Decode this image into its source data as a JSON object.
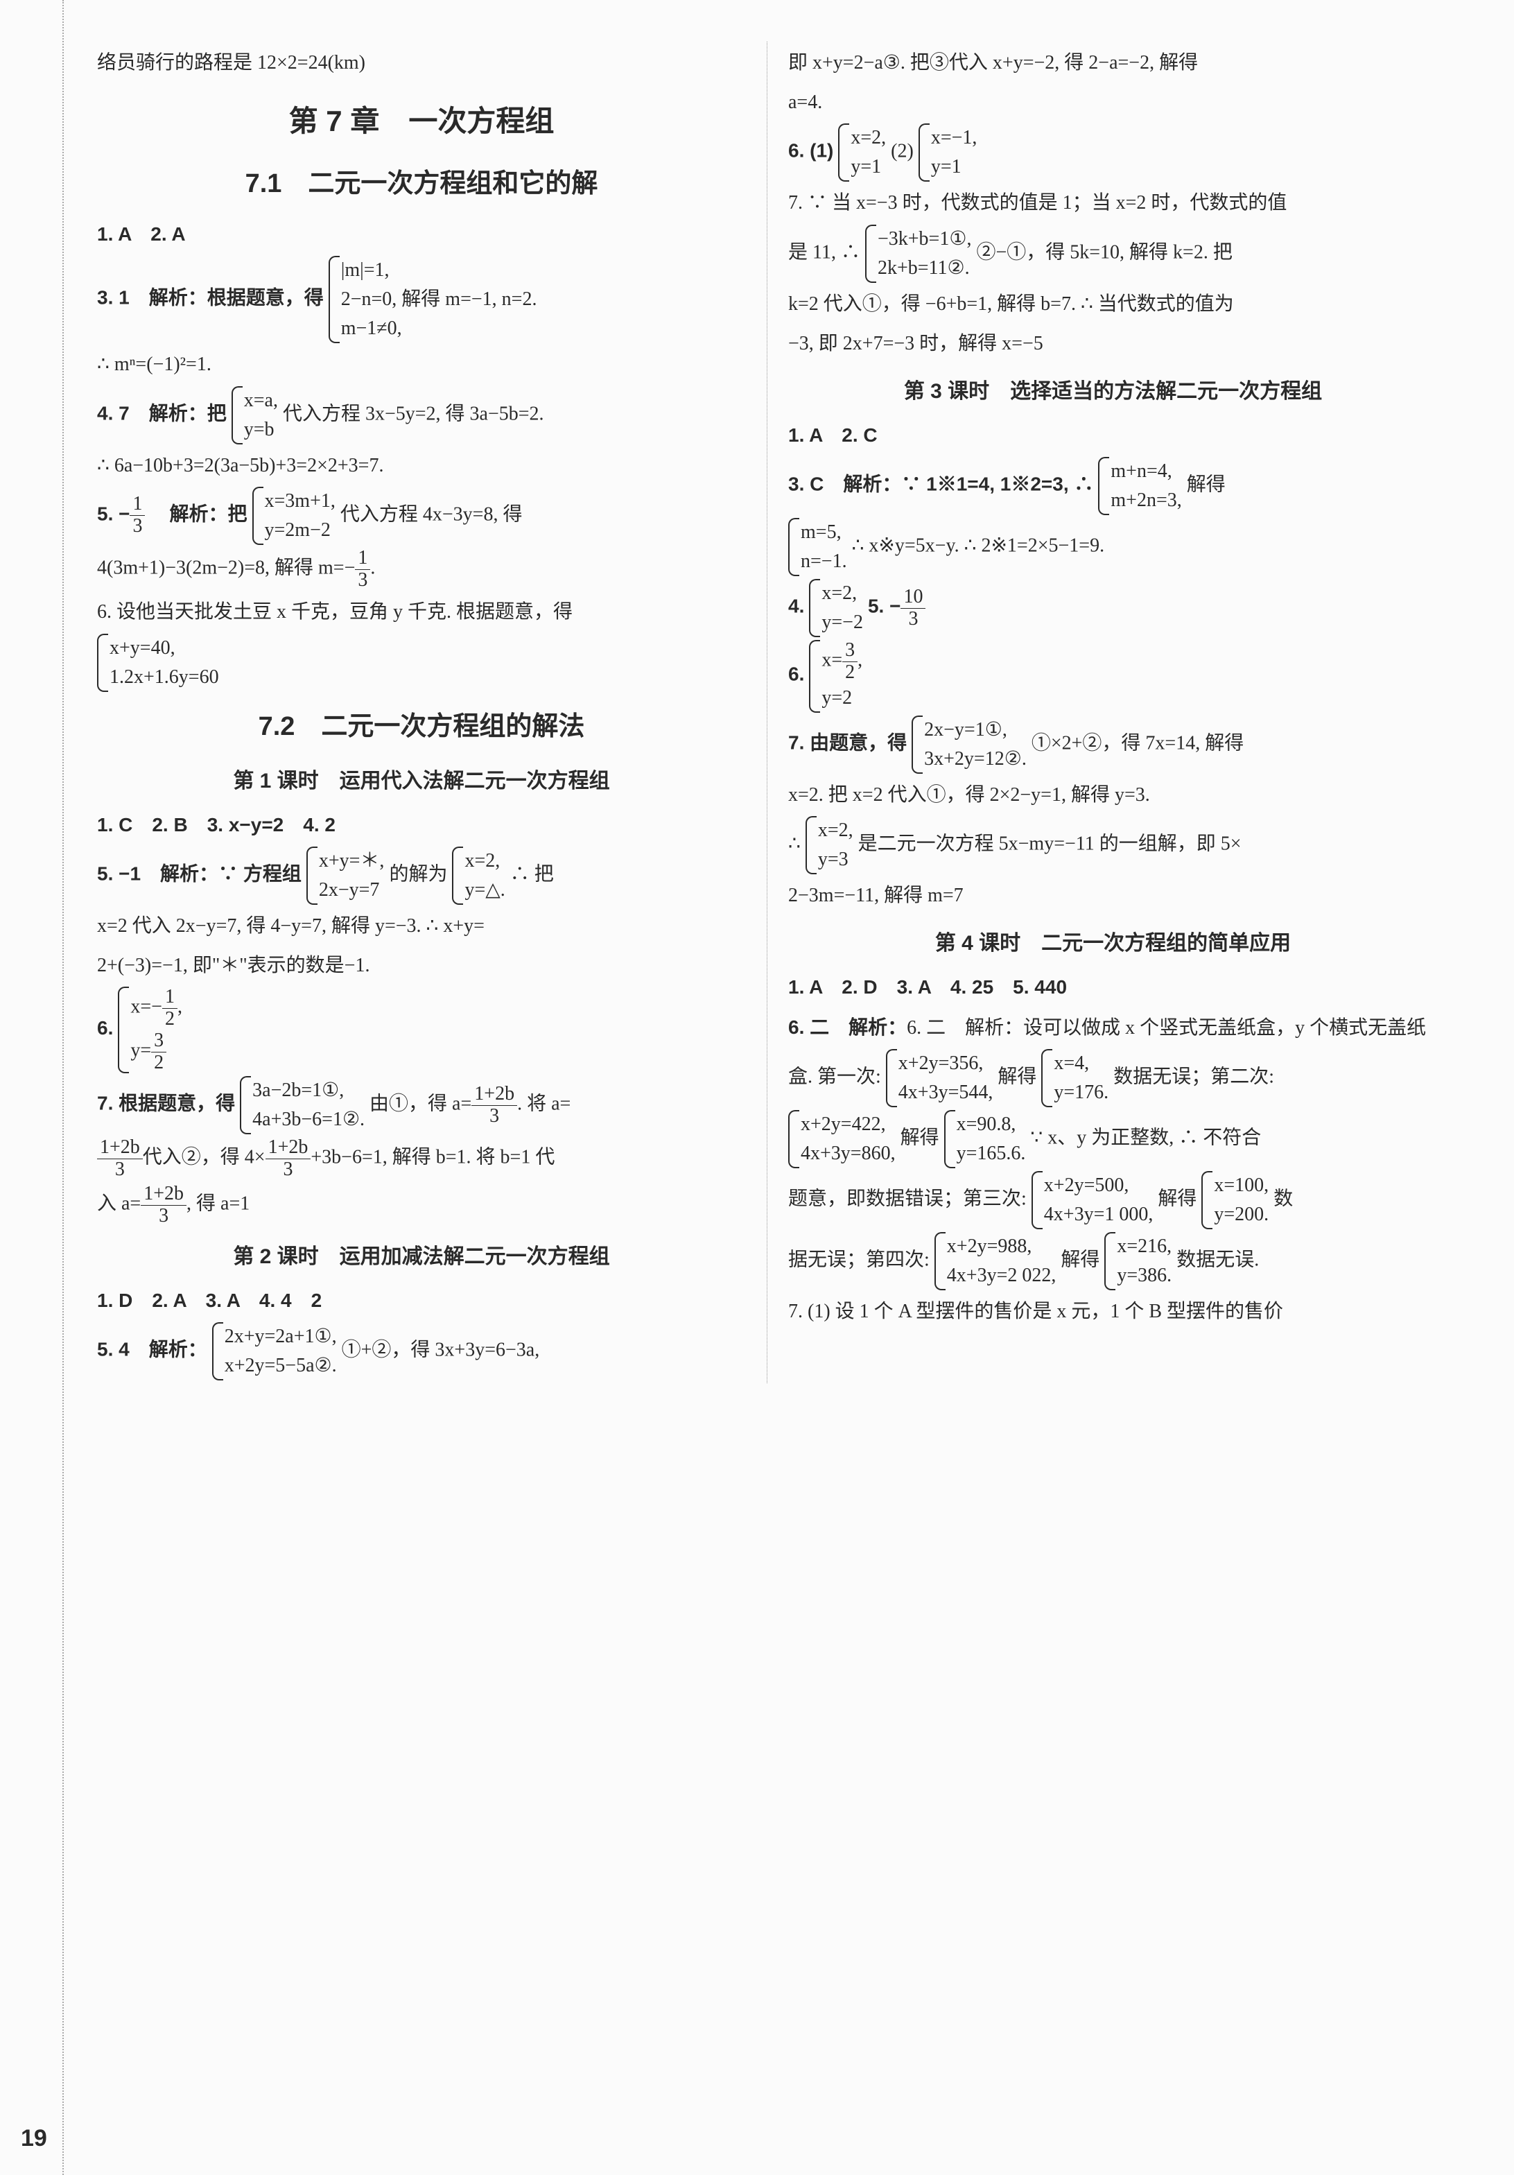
{
  "pagenum": "19",
  "left": {
    "intro": "络员骑行的路程是 12×2=24(km)",
    "h1": "第 7 章　一次方程组",
    "h2a": "7.1　二元一次方程组和它的解",
    "l1": "1. A　2. A",
    "l2a": "3. 1　解析：根据题意，得",
    "l2b1": "|m|=1,",
    "l2b2": "2−n=0, 解得 m=−1, n=2.",
    "l2b3": "m−1≠0,",
    "l3": "∴ mⁿ=(−1)²=1.",
    "l4a": "4. 7　解析：把",
    "l4b1": "x=a,",
    "l4b2": "y=b",
    "l4c": "代入方程 3x−5y=2, 得 3a−5b=2.",
    "l5": "∴ 6a−10b+3=2(3a−5b)+3=2×2+3=7.",
    "l6a": "5. −",
    "l6frac_n": "1",
    "l6frac_d": "3",
    "l6b": "　解析：把",
    "l6c1": "x=3m+1,",
    "l6c2": "y=2m−2",
    "l6d": "代入方程 4x−3y=8, 得",
    "l7a": "4(3m+1)−3(2m−2)=8, 解得 m=−",
    "l7frac_n": "1",
    "l7frac_d": "3",
    "l7b": ".",
    "l8": "6. 设他当天批发土豆 x 千克，豆角 y 千克. 根据题意，得",
    "l9a": "x+y=40,",
    "l9b": "1.2x+1.6y=60",
    "h2b": "7.2　二元一次方程组的解法",
    "h3a": "第 1 课时　运用代入法解二元一次方程组",
    "l10": "1. C　2. B　3. x−y=2　4. 2",
    "l11a": "5. −1　解析：∵ 方程组",
    "l11b1": "x+y=＊,",
    "l11b2": "2x−y=7",
    "l11c": "的解为",
    "l11d1": "x=2,",
    "l11d2": "y=△.",
    "l11e": "∴ 把",
    "l12": "x=2 代入 2x−y=7, 得 4−y=7, 解得 y=−3. ∴ x+y=",
    "l13": "2+(−3)=−1, 即\"＊\"表示的数是−1.",
    "l14a": "6.",
    "l14b1n": "1",
    "l14b1d": "2",
    "l14b1": "x=−",
    "l14b1s": ",",
    "l14b2": "y=",
    "l14b2n": "3",
    "l14b2d": "2",
    "l15a": "7. 根据题意，得",
    "l15b1": "3a−2b=1①,",
    "l15b2": "4a+3b−6=1②.",
    "l15c": "由①，得 a=",
    "l15cn": "1+2b",
    "l15cd": "3",
    "l15d": ". 将 a=",
    "l16an": "1+2b",
    "l16ad": "3",
    "l16a": "代入②，得 4×",
    "l16bn": "1+2b",
    "l16bd": "3",
    "l16b": "+3b−6=1, 解得 b=1. 将 b=1 代",
    "l17a": "入 a=",
    "l17n": "1+2b",
    "l17d": "3",
    "l17b": ", 得 a=1",
    "h3b": "第 2 课时　运用加减法解二元一次方程组",
    "l18": "1. D　2. A　3. A　4. 4　2",
    "l19a": "5. 4　解析：",
    "l19b1": "2x+y=2a+1①,",
    "l19b2": "x+2y=5−5a②.",
    "l19c": "①+②，得 3x+3y=6−3a,"
  },
  "right": {
    "r1": "即 x+y=2−a③. 把③代入 x+y=−2, 得 2−a=−2, 解得",
    "r2": "a=4.",
    "r3a": "6. (1)",
    "r3b1": "x=2,",
    "r3b2": "y=1",
    "r3c": "(2)",
    "r3d1": "x=−1,",
    "r3d2": "y=1",
    "r4": "7. ∵ 当 x=−3 时，代数式的值是 1；当 x=2 时，代数式的值",
    "r5a": "是 11, ∴",
    "r5b1": "−3k+b=1①,",
    "r5b2": "2k+b=11②.",
    "r5c": "②−①，得 5k=10, 解得 k=2. 把",
    "r6": "k=2 代入①，得 −6+b=1, 解得 b=7. ∴ 当代数式的值为",
    "r7": "−3, 即 2x+7=−3 时，解得 x=−5",
    "h3c": "第 3 课时　选择适当的方法解二元一次方程组",
    "r8": "1. A　2. C",
    "r9a": "3. C　解析：∵ 1※1=4, 1※2=3, ∴",
    "r9b1": "m+n=4,",
    "r9b2": "m+2n=3,",
    "r9c": "解得",
    "r10a1": "m=5,",
    "r10a2": "n=−1.",
    "r10b": "∴ x※y=5x−y. ∴ 2※1=2×5−1=9.",
    "r11a": "4.",
    "r11b1": "x=2,",
    "r11b2": "y=−2",
    "r11c": "5. −",
    "r11cn": "10",
    "r11cd": "3",
    "r12a": "6.",
    "r12b1a": "x=",
    "r12b1n": "3",
    "r12b1d": "2",
    "r12b1s": ",",
    "r12b2": "y=2",
    "r13a": "7. 由题意，得",
    "r13b1": "2x−y=1①,",
    "r13b2": "3x+2y=12②.",
    "r13c": "①×2+②，得 7x=14, 解得",
    "r14": "x=2. 把 x=2 代入①，得 2×2−y=1, 解得 y=3.",
    "r15a": "∴",
    "r15b1": "x=2,",
    "r15b2": "y=3",
    "r15c": "是二元一次方程 5x−my=−11 的一组解，即 5×",
    "r16": "2−3m=−11, 解得 m=7",
    "h3d": "第 4 课时　二元一次方程组的简单应用",
    "r17": "1. A　2. D　3. A　4. 25　5. 440",
    "r18": "6. 二　解析：设可以做成 x 个竖式无盖纸盒，y 个横式无盖纸",
    "r19a": "盒. 第一次:",
    "r19b1": "x+2y=356,",
    "r19b2": "4x+3y=544,",
    "r19c": "解得",
    "r19d1": "x=4,",
    "r19d2": "y=176.",
    "r19e": "数据无误；第二次:",
    "r20a1": "x+2y=422,",
    "r20a2": "4x+3y=860,",
    "r20b": "解得",
    "r20c1": "x=90.8,",
    "r20c2": "y=165.6.",
    "r20d": "∵ x、y 为正整数, ∴ 不符合",
    "r21a": "题意，即数据错误；第三次:",
    "r21b1": "x+2y=500,",
    "r21b2": "4x+3y=1 000,",
    "r21c": "解得",
    "r21d1": "x=100,",
    "r21d2": "y=200.",
    "r21e": "数",
    "r22a": "据无误；第四次:",
    "r22b1": "x+2y=988,",
    "r22b2": "4x+3y=2 022,",
    "r22c": "解得",
    "r22d1": "x=216,",
    "r22d2": "y=386.",
    "r22e": "数据无误.",
    "r23": "7. (1) 设 1 个 A 型摆件的售价是 x 元，1 个 B 型摆件的售价"
  }
}
